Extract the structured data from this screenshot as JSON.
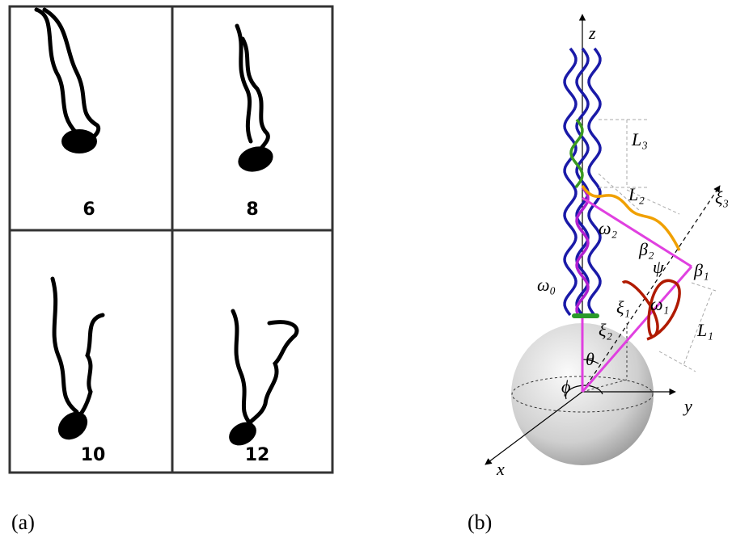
{
  "panel_a": {
    "label": "(a)",
    "frames": [
      "6",
      "8",
      "10",
      "12"
    ]
  },
  "panel_b": {
    "label": "(b)",
    "labels": [
      "z",
      "y",
      "x",
      "L₃",
      "L₂",
      "L₁",
      "ξ₃",
      "ξ₁",
      "ξ₂",
      "ω₀",
      "ω₁",
      "ω₂",
      "β₁",
      "β₂",
      "ψ",
      "θ",
      "ϕ"
    ]
  }
}
